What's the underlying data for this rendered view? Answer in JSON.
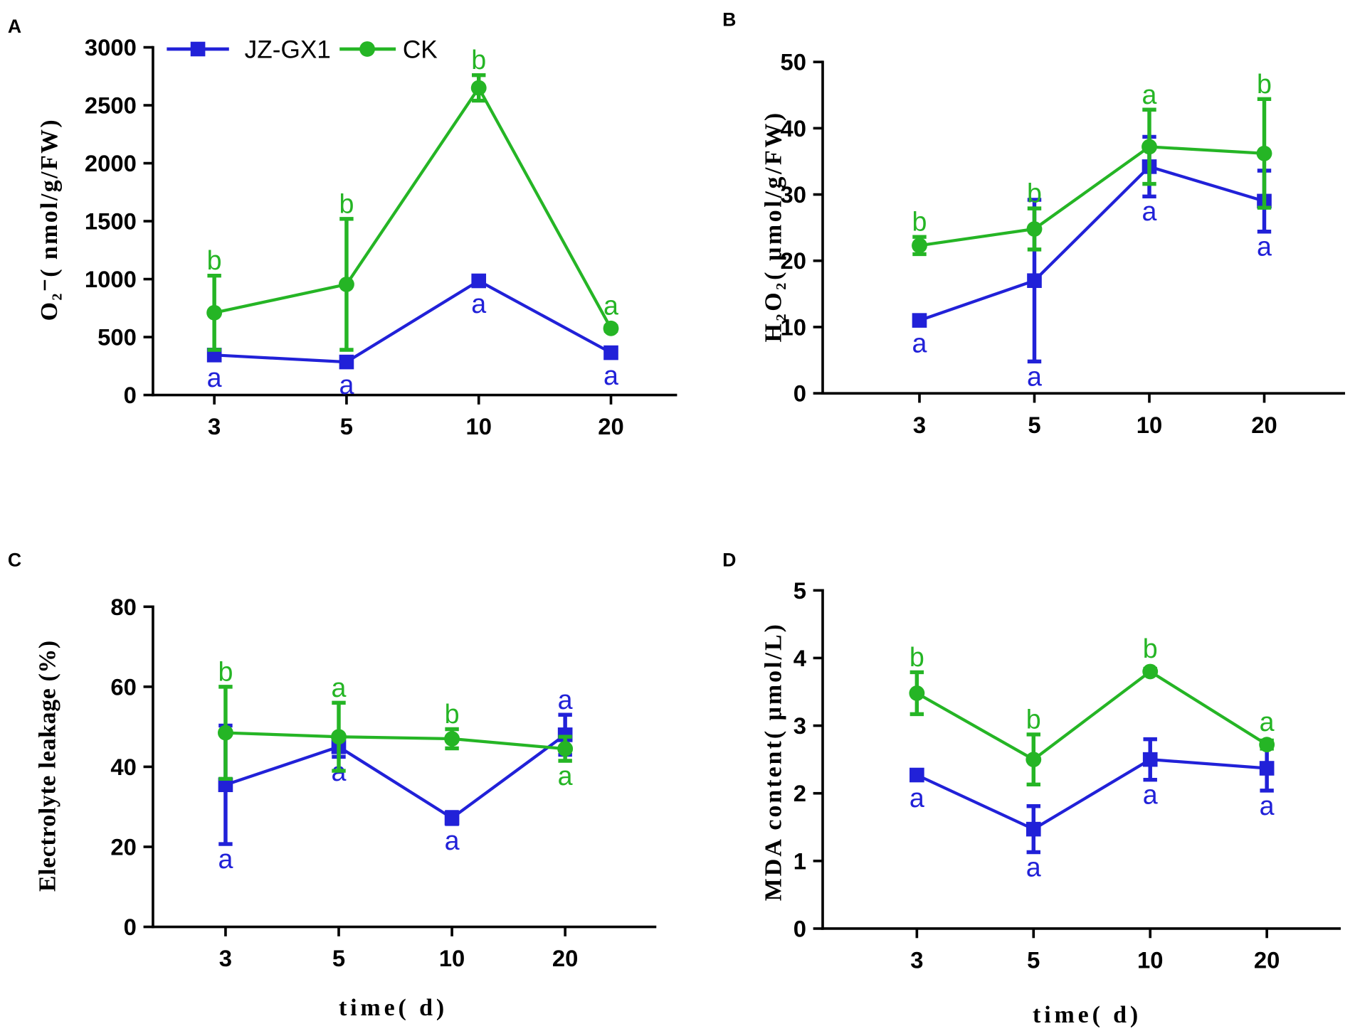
{
  "chart_data": [
    {
      "panel": "A",
      "type": "line",
      "categories": [
        "3",
        "5",
        "10",
        "20"
      ],
      "ylabel": "O₂⁻( nmol/g/FW)",
      "ylim": [
        0,
        3000
      ],
      "yticks": [
        0,
        500,
        1000,
        1500,
        2000,
        2500,
        3000
      ],
      "grid": false,
      "legend": "top-left",
      "series": [
        {
          "name": "JZ-GX1",
          "color": "#2121d8",
          "marker": "square",
          "values": [
            345,
            285,
            985,
            365
          ],
          "errors": [
            25,
            20,
            45,
            25
          ],
          "letters": [
            "a",
            "a",
            "a",
            "a"
          ],
          "letter_side": [
            "below",
            "below",
            "below",
            "below"
          ]
        },
        {
          "name": "CK",
          "color": "#25b525",
          "marker": "circle",
          "values": [
            710,
            955,
            2650,
            575
          ],
          "errors": [
            320,
            565,
            110,
            20
          ],
          "letters": [
            "b",
            "b",
            "b",
            "a"
          ],
          "letter_side": [
            "above",
            "above",
            "above",
            "above"
          ]
        }
      ]
    },
    {
      "panel": "B",
      "type": "line",
      "categories": [
        "3",
        "5",
        "10",
        "20"
      ],
      "ylabel": "H₂O₂( μmol/g/FW)",
      "ylim": [
        0,
        50
      ],
      "yticks": [
        0,
        10,
        20,
        30,
        40,
        50
      ],
      "grid": false,
      "series": [
        {
          "color": "#2121d8",
          "marker": "square",
          "values": [
            11,
            17,
            34.2,
            29
          ],
          "errors": [
            0.5,
            12.2,
            4.5,
            4.6
          ],
          "letters": [
            "a",
            "a",
            "a",
            "a"
          ],
          "letter_side": [
            "below",
            "below",
            "below",
            "below"
          ]
        },
        {
          "color": "#25b525",
          "marker": "circle",
          "values": [
            22.3,
            24.8,
            37.2,
            36.2
          ],
          "errors": [
            1.3,
            3.1,
            5.6,
            8.2
          ],
          "letters": [
            "b",
            "b",
            "a",
            "b"
          ],
          "letter_side": [
            "above",
            "above",
            "above",
            "above"
          ]
        }
      ]
    },
    {
      "panel": "C",
      "type": "line",
      "categories": [
        "3",
        "5",
        "10",
        "20"
      ],
      "xlabel": "time( d)",
      "ylabel": "Electrolyte leakage (%)",
      "ylim": [
        0,
        80
      ],
      "yticks": [
        0,
        20,
        40,
        60,
        80
      ],
      "grid": false,
      "series": [
        {
          "color": "#2121d8",
          "marker": "square",
          "values": [
            35.5,
            45,
            27.2,
            48
          ],
          "errors": [
            14.8,
            2.5,
            1.5,
            5
          ],
          "letters": [
            "a",
            "a",
            "a",
            "a"
          ],
          "letter_side": [
            "below",
            "below",
            "below",
            "above"
          ]
        },
        {
          "color": "#25b525",
          "marker": "circle",
          "values": [
            48.5,
            47.5,
            47,
            44.5
          ],
          "errors": [
            11.5,
            8.5,
            2.4,
            3
          ],
          "letters": [
            "b",
            "a",
            "b",
            "a"
          ],
          "letter_side": [
            "above",
            "above",
            "above",
            "below"
          ]
        }
      ]
    },
    {
      "panel": "D",
      "type": "line",
      "categories": [
        "3",
        "5",
        "10",
        "20"
      ],
      "xlabel": "time( d)",
      "ylabel": "MDA content( μmol/L)",
      "ylim": [
        0,
        5
      ],
      "yticks": [
        0,
        1,
        2,
        3,
        4,
        5
      ],
      "grid": false,
      "series": [
        {
          "color": "#2121d8",
          "marker": "square",
          "values": [
            2.27,
            1.47,
            2.5,
            2.37
          ],
          "errors": [
            0.05,
            0.34,
            0.3,
            0.33
          ],
          "letters": [
            "a",
            "a",
            "a",
            "a"
          ],
          "letter_side": [
            "below",
            "below",
            "below",
            "below"
          ]
        },
        {
          "color": "#25b525",
          "marker": "circle",
          "values": [
            3.48,
            2.5,
            3.8,
            2.72
          ],
          "errors": [
            0.31,
            0.37,
            0.04,
            0.06
          ],
          "letters": [
            "b",
            "b",
            "b",
            "a"
          ],
          "letter_side": [
            "above",
            "above",
            "above",
            "above"
          ]
        }
      ]
    }
  ]
}
